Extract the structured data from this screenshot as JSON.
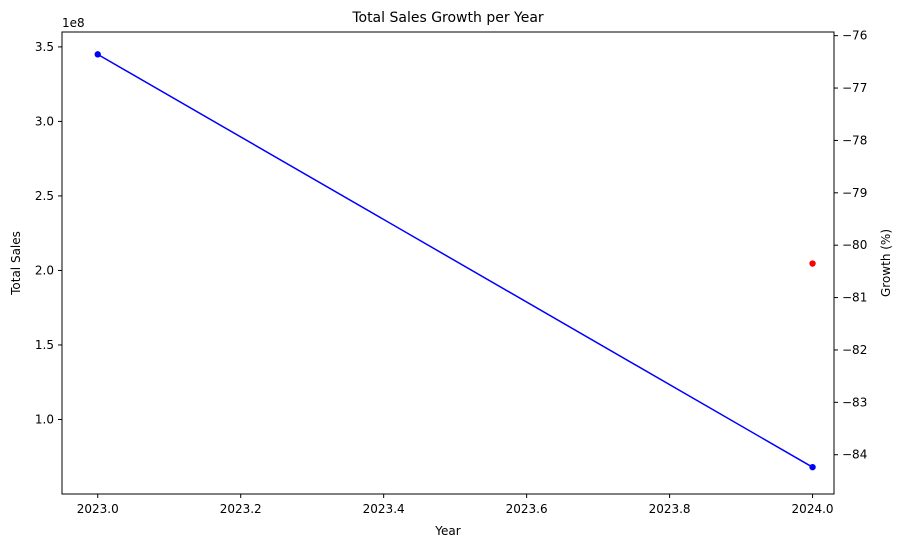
{
  "chart_data": {
    "type": "line",
    "title": "Total Sales Growth per Year",
    "xlabel": "Year",
    "ylabel": "Total Sales",
    "y2label": "Growth (%)",
    "y_offset_label": "1e8",
    "xlim": [
      2022.95,
      2024.03
    ],
    "ylim": [
      0.5,
      3.6
    ],
    "y2lim": [
      -84.75,
      -75.93
    ],
    "x_ticks": [
      2023.0,
      2023.2,
      2023.4,
      2023.6,
      2023.8,
      2024.0
    ],
    "x_tick_labels": [
      "2023.0",
      "2023.2",
      "2023.4",
      "2023.6",
      "2023.8",
      "2024.0"
    ],
    "y_ticks": [
      1.0,
      1.5,
      2.0,
      2.5,
      3.0,
      3.5
    ],
    "y_tick_labels": [
      "1.0",
      "1.5",
      "2.0",
      "2.5",
      "3.0",
      "3.5"
    ],
    "y2_ticks": [
      -84,
      -83,
      -82,
      -81,
      -80,
      -79,
      -78,
      -77,
      -76
    ],
    "y2_tick_labels": [
      "−84",
      "−83",
      "−82",
      "−81",
      "−80",
      "−79",
      "−78",
      "−77",
      "−76"
    ],
    "grid": false,
    "series": [
      {
        "axis": "left",
        "style": "line-marker",
        "color": "#0000ff",
        "x": [
          2023.0,
          2024.0
        ],
        "values": [
          3.45,
          0.68
        ]
      },
      {
        "axis": "right",
        "style": "marker",
        "color": "#ff0000",
        "x": [
          2024.0
        ],
        "values": [
          -80.35
        ]
      }
    ]
  }
}
